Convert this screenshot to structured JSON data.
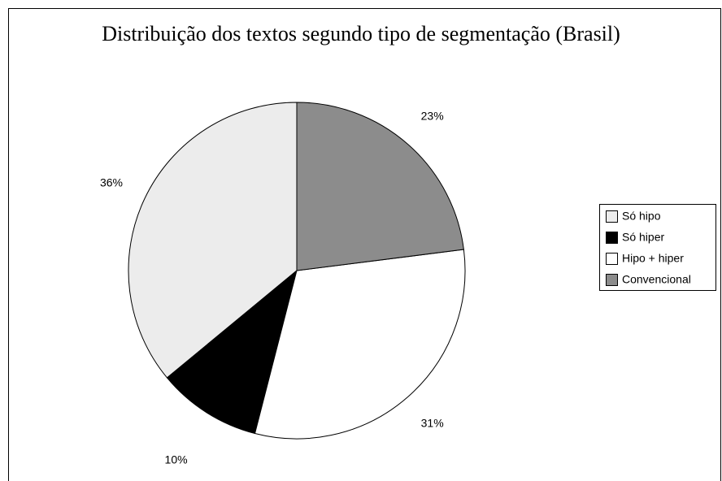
{
  "chart_data": {
    "type": "pie",
    "title": "Distribuição dos textos segundo tipo de segmentação (Brasil)",
    "categories": [
      "Só hipo",
      "Só hiper",
      "Hipo + hiper",
      "Convencional"
    ],
    "values": [
      36,
      10,
      31,
      23
    ],
    "value_labels": [
      "36%",
      "10%",
      "31%",
      "23%"
    ],
    "colors": [
      "#ececec",
      "#000000",
      "#ffffff",
      "#8c8c8c"
    ],
    "legend": "right"
  }
}
